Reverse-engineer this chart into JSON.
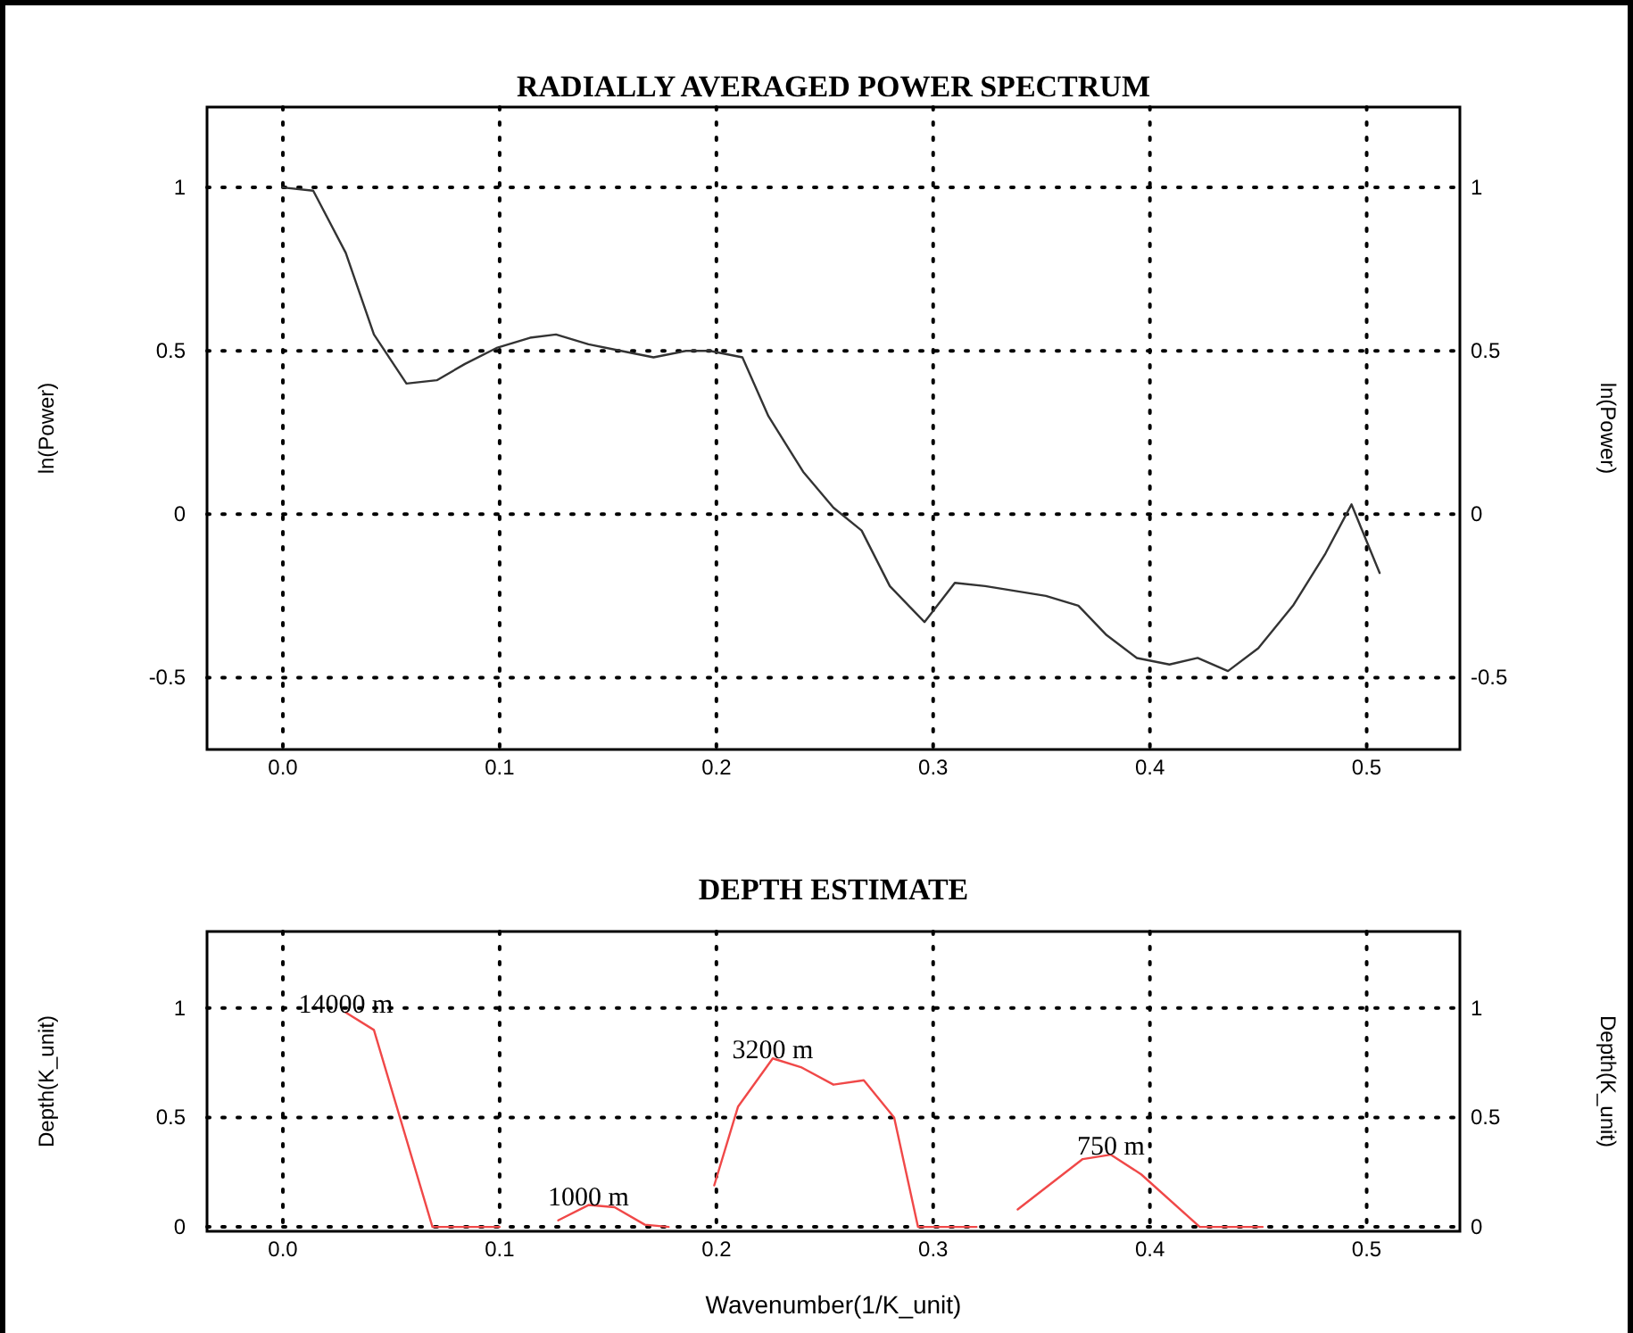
{
  "chart_data": [
    {
      "type": "line",
      "title": "RADIALLY AVERAGED POWER SPECTRUM",
      "ylabel": "ln(Power)",
      "y2label": "ln(Power)",
      "grid": true,
      "xlim": [
        -0.035,
        0.543
      ],
      "xticks": [
        {
          "value": 0,
          "label": "0.0"
        },
        0.1,
        0.2,
        0.3,
        0.4,
        0.5
      ],
      "ylim": [
        -0.72,
        1.246
      ],
      "yticks": [
        -0.5,
        0,
        0.5,
        1
      ],
      "y2lim": [
        -0.72,
        1.246
      ],
      "y2ticks": [
        -0.5,
        0,
        0.5,
        1
      ],
      "series": [
        {
          "color": "#333333",
          "x": [
            0,
            0.014,
            0.029,
            0.042,
            0.057,
            0.071,
            0.084,
            0.099,
            0.114,
            0.126,
            0.141,
            0.156,
            0.171,
            0.186,
            0.197,
            0.212,
            0.224,
            0.24,
            0.254,
            0.267,
            0.28,
            0.296,
            0.31,
            0.324,
            0.352,
            0.367,
            0.38,
            0.394,
            0.409,
            0.422,
            0.436,
            0.45,
            0.466,
            0.481,
            0.493,
            0.506
          ],
          "values": [
            1.0,
            0.99,
            0.8,
            0.55,
            0.4,
            0.41,
            0.46,
            0.51,
            0.54,
            0.55,
            0.52,
            0.5,
            0.48,
            0.5,
            0.5,
            0.48,
            0.3,
            0.13,
            0.02,
            -0.05,
            -0.22,
            -0.33,
            -0.21,
            -0.22,
            -0.25,
            -0.28,
            -0.37,
            -0.44,
            -0.46,
            -0.44,
            -0.48,
            -0.41,
            -0.28,
            -0.12,
            0.03,
            -0.18
          ]
        }
      ]
    },
    {
      "type": "line",
      "title": "DEPTH ESTIMATE",
      "xlabel": "Wavenumber(1/K_unit)",
      "ylabel": "Depth(K_unit)",
      "y2label": "Depth(K_unit)",
      "grid": true,
      "xlim": [
        -0.035,
        0.543
      ],
      "xticks": [
        {
          "value": 0,
          "label": "0.0"
        },
        0.1,
        0.2,
        0.3,
        0.4,
        0.5
      ],
      "ylim": [
        -0.02,
        1.35
      ],
      "yticks": [
        0,
        0.5,
        1
      ],
      "y2lim": [
        -0.02,
        1.35
      ],
      "y2ticks": [
        0,
        0.5,
        1
      ],
      "annotations": [
        {
          "text": "14000 m",
          "x": 0.029,
          "y": 0.98
        },
        {
          "text": "1000 m",
          "x": 0.141,
          "y": 0.1
        },
        {
          "text": "3200 m",
          "x": 0.226,
          "y": 0.77
        },
        {
          "text": "750 m",
          "x": 0.382,
          "y": 0.33
        }
      ],
      "series": [
        {
          "color": "#f04848",
          "x": [
            0.029,
            0.042,
            0.069,
            0.1
          ],
          "values": [
            0.98,
            0.9,
            0,
            0
          ]
        },
        {
          "color": "#f04848",
          "x": [
            0.127,
            0.141,
            0.153,
            0.167,
            0.178
          ],
          "values": [
            0.03,
            0.1,
            0.09,
            0.01,
            0
          ]
        },
        {
          "color": "#f04848",
          "x": [
            0.199,
            0.21,
            0.226,
            0.239,
            0.254,
            0.268,
            0.282,
            0.293,
            0.31,
            0.32
          ],
          "values": [
            0.19,
            0.55,
            0.77,
            0.73,
            0.65,
            0.67,
            0.5,
            0,
            0,
            0
          ]
        },
        {
          "color": "#f04848",
          "x": [
            0.339,
            0.369,
            0.382,
            0.396,
            0.423,
            0.452
          ],
          "values": [
            0.08,
            0.31,
            0.33,
            0.24,
            0,
            0
          ]
        }
      ]
    }
  ]
}
